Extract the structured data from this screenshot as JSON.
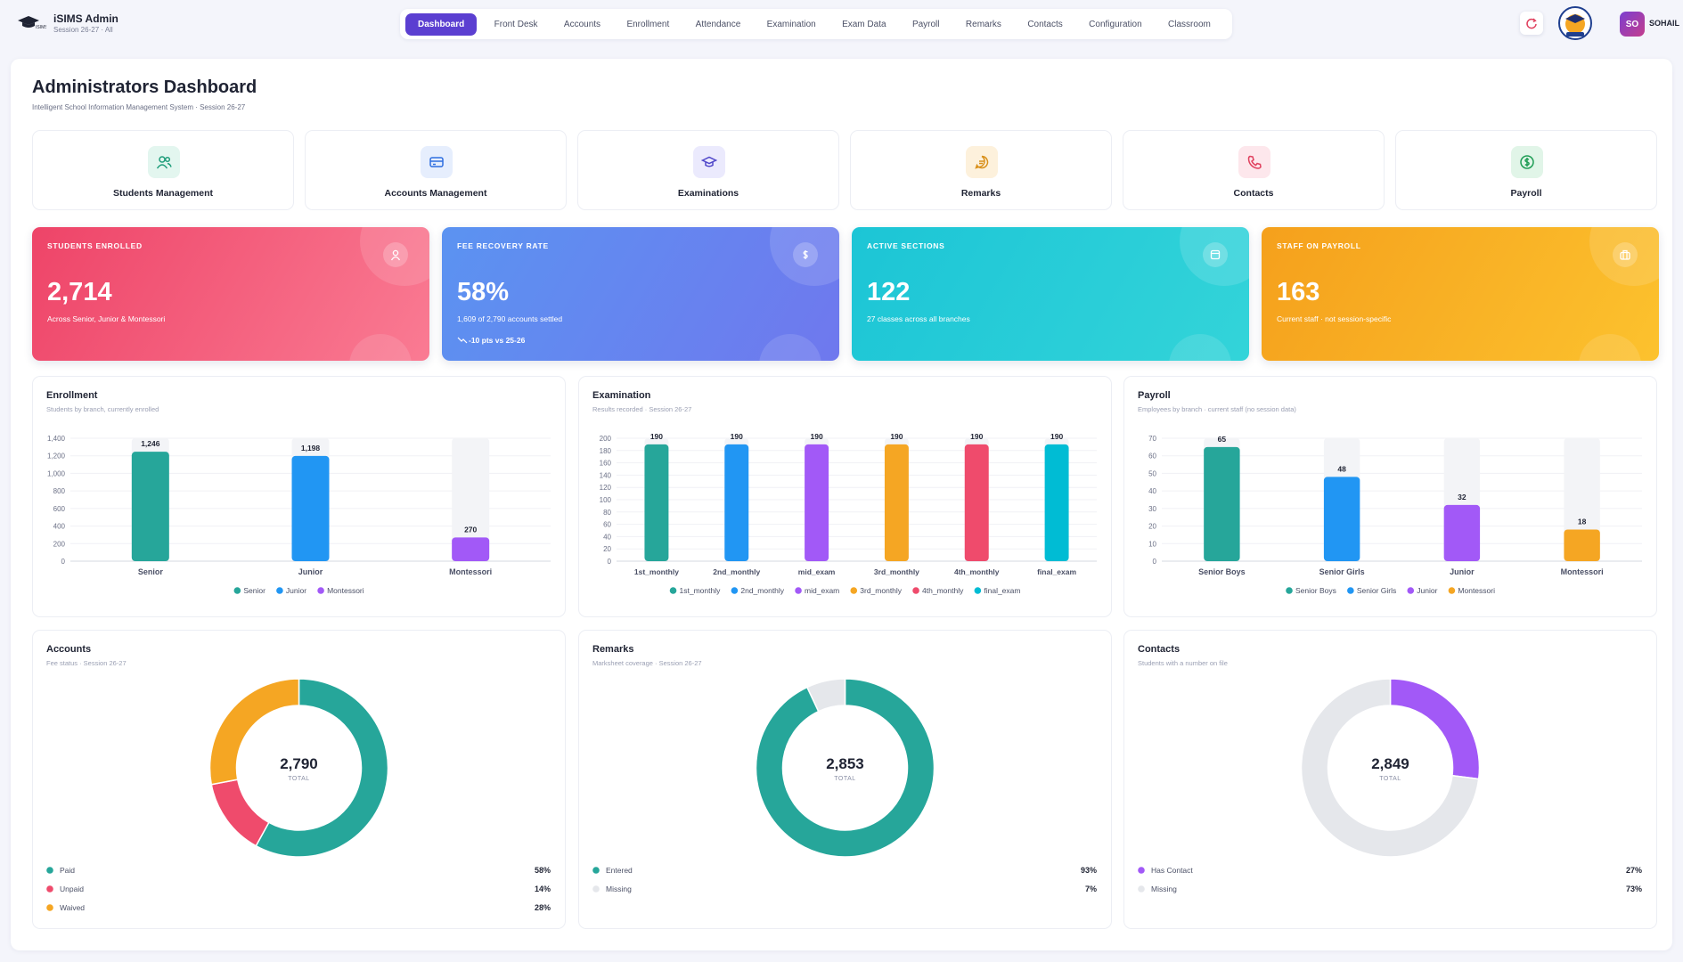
{
  "header": {
    "title": "iSIMS Admin",
    "subtitle": "Session 26-27 · All"
  },
  "nav": [
    "Dashboard",
    "Front Desk",
    "Accounts",
    "Enrollment",
    "Attendance",
    "Examination",
    "Exam Data",
    "Payroll",
    "Remarks",
    "Contacts",
    "Configuration",
    "Classroom"
  ],
  "user": {
    "initials": "SO",
    "name": "SOHAIL"
  },
  "page": {
    "title": "Administrators Dashboard",
    "subtitle": "Intelligent School Information Management System · Session 26-27"
  },
  "modules": [
    "Students Management",
    "Accounts Management",
    "Examinations",
    "Remarks",
    "Contacts",
    "Payroll"
  ],
  "stats": [
    {
      "label": "STUDENTS ENROLLED",
      "value": "2,714",
      "note": "Across Senior, Junior & Montessori"
    },
    {
      "label": "FEE RECOVERY RATE",
      "value": "58%",
      "note": "1,609 of 2,790 accounts settled",
      "trend": "-10 pts vs 25-26"
    },
    {
      "label": "ACTIVE SECTIONS",
      "value": "122",
      "note": "27 classes across all branches"
    },
    {
      "label": "STAFF ON PAYROLL",
      "value": "163",
      "note": "Current staff · not session-specific"
    }
  ],
  "charts": [
    {
      "type": "bar",
      "title": "Enrollment",
      "subtitle": "Students by branch, currently enrolled",
      "categories": [
        "Senior",
        "Junior",
        "Montessori"
      ],
      "values": [
        1246,
        1198,
        270
      ],
      "value_labels": [
        "1,246",
        "1,198",
        "270"
      ],
      "colors": [
        "#26a69a",
        "#2196f3",
        "#a259f7"
      ],
      "ylim": [
        0,
        1400
      ],
      "yticks": [
        0,
        200,
        400,
        600,
        800,
        {
          "value": 1000,
          "label": "1,000"
        },
        {
          "value": 1200,
          "label": "1,200"
        },
        {
          "value": 1400,
          "label": "1,400"
        }
      ],
      "grid": true
    },
    {
      "type": "bar",
      "title": "Examination",
      "subtitle": "Results recorded · Session 26-27",
      "categories": [
        "1st_monthly",
        "2nd_monthly",
        "mid_exam",
        "3rd_monthly",
        "4th_monthly",
        "final_exam"
      ],
      "values": [
        190,
        190,
        190,
        190,
        190,
        190
      ],
      "colors": [
        "#26a69a",
        "#2196f3",
        "#a259f7",
        "#f5a623",
        "#ef4b6c",
        "#00bcd4"
      ],
      "ylim": [
        0,
        200
      ],
      "yticks": [
        0,
        20,
        40,
        60,
        80,
        100,
        120,
        140,
        160,
        180,
        200
      ],
      "grid": true
    },
    {
      "type": "bar",
      "title": "Payroll",
      "subtitle": "Employees by branch · current staff (no session data)",
      "categories": [
        "Senior Boys",
        "Senior Girls",
        "Junior",
        "Montessori"
      ],
      "values": [
        65,
        48,
        32,
        18
      ],
      "colors": [
        "#26a69a",
        "#2196f3",
        "#a259f7",
        "#f5a623"
      ],
      "ylim": [
        0,
        70
      ],
      "yticks": [
        0,
        10,
        20,
        30,
        40,
        50,
        60,
        70
      ],
      "grid": true
    },
    {
      "type": "donut",
      "title": "Accounts",
      "subtitle": "Fee status · Session 26-27",
      "total": "2,790",
      "center_label": "TOTAL",
      "categories": [
        "Paid",
        "Unpaid",
        "Waived"
      ],
      "values": [
        58,
        14,
        28
      ],
      "value_labels": [
        "58%",
        "14%",
        "28%"
      ],
      "colors": [
        "#26a69a",
        "#ef4b6c",
        "#f5a623"
      ]
    },
    {
      "type": "donut",
      "title": "Remarks",
      "subtitle": "Marksheet coverage · Session 26-27",
      "total": "2,853",
      "center_label": "TOTAL",
      "categories": [
        "Entered",
        "Missing"
      ],
      "values": [
        93,
        7
      ],
      "value_labels": [
        "93%",
        "7%"
      ],
      "colors": [
        "#26a69a",
        "#e5e7eb"
      ]
    },
    {
      "type": "donut",
      "title": "Contacts",
      "subtitle": "Students with a number on file",
      "total": "2,849",
      "center_label": "TOTAL",
      "categories": [
        "Has Contact",
        "Missing"
      ],
      "values": [
        27,
        73
      ],
      "value_labels": [
        "27%",
        "73%"
      ],
      "colors": [
        "#a259f7",
        "#e5e7eb"
      ]
    }
  ]
}
